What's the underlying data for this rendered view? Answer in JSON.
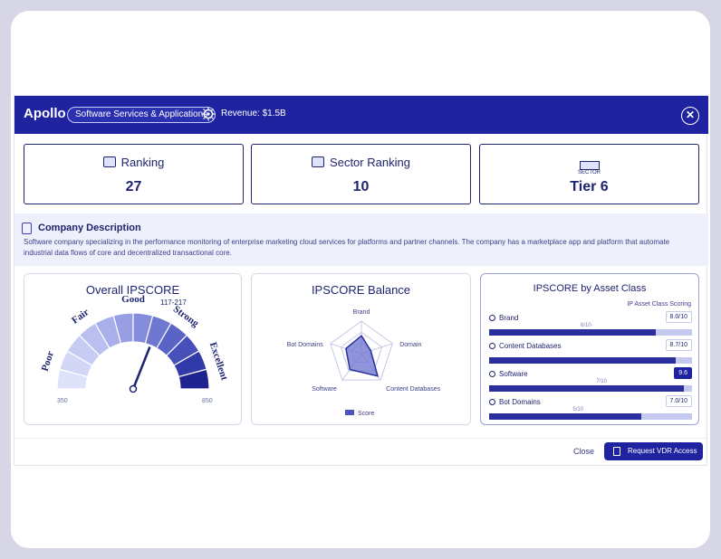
{
  "header": {
    "brand": "Apollo",
    "pill": "Software Services & Applications",
    "meta": "Revenue: $1.5B",
    "close": "✕"
  },
  "stats": [
    {
      "label": "Ranking",
      "value": "27"
    },
    {
      "label": "Sector Ranking",
      "value": "10"
    },
    {
      "label": "SECTOR",
      "value": "Tier 6"
    }
  ],
  "description": {
    "title": "Company Description",
    "text": "Software company specializing in the performance monitoring of enterprise marketing cloud services for platforms and partner channels. The company has a marketplace app and platform that automate industrial data flows of core and decentralized transactional core."
  },
  "gauge": {
    "title": "Overall IPSCORE",
    "labels": [
      "Poor",
      "Fair",
      "Good",
      "Strong",
      "Excellent"
    ],
    "score_label": "117-217",
    "min": "350",
    "max": "850",
    "value": 0.62
  },
  "radar": {
    "title": "IPSCORE Balance",
    "axes": [
      "Brand",
      "Domain",
      "Content Databases",
      "Software",
      "Bot Domains"
    ],
    "values": [
      0.55,
      0.3,
      0.85,
      0.6,
      0.5
    ],
    "legend": "Score"
  },
  "assets": {
    "title": "IPSCORE by Asset Class",
    "subtitle": "IP Asset Class Scoring",
    "rows": [
      {
        "name": "Brand",
        "badge": "8.0/10",
        "dark": false,
        "mid": "6/10",
        "value": 0.82
      },
      {
        "name": "Content Databases",
        "badge": "8.7/10",
        "dark": false,
        "mid": "",
        "value": 0.92
      },
      {
        "name": "Software",
        "badge": "9.6",
        "dark": true,
        "mid": "7/10",
        "value": 0.96
      },
      {
        "name": "Bot Domains",
        "badge": "7.0/10",
        "dark": false,
        "mid": "5/10",
        "value": 0.75
      }
    ]
  },
  "footer": {
    "close": "Close",
    "cta": "Request VDR Access"
  },
  "colors": {
    "primary": "#1f23a0",
    "light": "#eef0fb"
  }
}
